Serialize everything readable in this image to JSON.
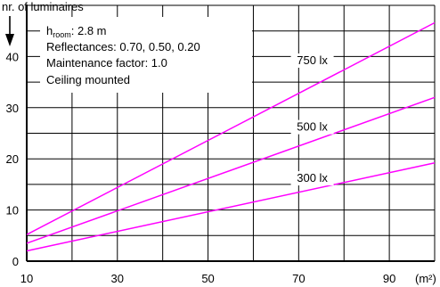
{
  "chart_data": {
    "type": "line",
    "ylabel": "nr. of luminaires",
    "xunit": "(m²)",
    "xlim": [
      10,
      100
    ],
    "ylim": [
      0,
      50
    ],
    "xticks": [
      10,
      30,
      50,
      70,
      90
    ],
    "yticks": [
      0,
      10,
      20,
      30,
      40
    ],
    "grid": true,
    "info": {
      "room_height_prefix": "h",
      "room_height_sub": "room",
      "room_height_value": ": 2.8 m",
      "reflectances": "Reflectances: 0.70, 0.50, 0.20",
      "maintenance": "Maintenance factor: 1.0",
      "mounting": "Ceiling mounted"
    },
    "series": [
      {
        "name": "750 lx",
        "color": "#ff00ff",
        "x": [
          10,
          100
        ],
        "y": [
          5.2,
          46.6
        ],
        "label_at": [
          73,
          38.5
        ]
      },
      {
        "name": "500 lx",
        "color": "#ff00ff",
        "x": [
          10,
          100
        ],
        "y": [
          3.5,
          32.0
        ],
        "label_at": [
          73,
          25.5
        ]
      },
      {
        "name": "300 lx",
        "color": "#ff00ff",
        "x": [
          10,
          100
        ],
        "y": [
          2.0,
          19.2
        ],
        "label_at": [
          73,
          15.5
        ]
      }
    ]
  }
}
